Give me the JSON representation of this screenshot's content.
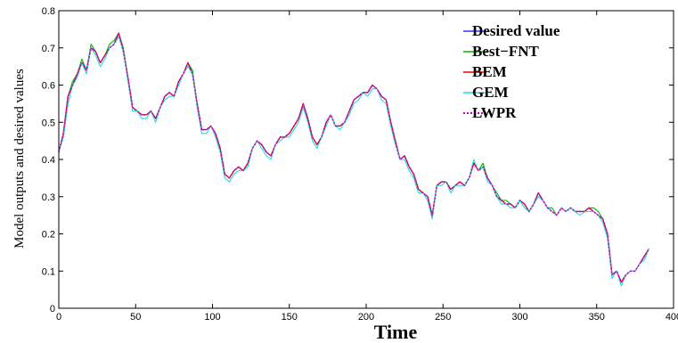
{
  "chart_data": {
    "type": "line",
    "xlabel": "Time",
    "ylabel": "Model outputs and desired values",
    "xlim": [
      0,
      400
    ],
    "ylim": [
      0,
      0.8
    ],
    "xticks": [
      "0",
      "50",
      "100",
      "150",
      "200",
      "250",
      "300",
      "350",
      "400"
    ],
    "yticks": [
      "0",
      "0.1",
      "0.2",
      "0.3",
      "0.4",
      "0.5",
      "0.6",
      "0.7",
      "0.8"
    ],
    "legend_position": "top-right",
    "grid": false,
    "x": [
      0,
      3,
      6,
      9,
      12,
      15,
      18,
      21,
      24,
      27,
      30,
      33,
      36,
      39,
      42,
      45,
      48,
      51,
      54,
      57,
      60,
      63,
      66,
      69,
      72,
      75,
      78,
      81,
      84,
      87,
      90,
      93,
      96,
      99,
      102,
      105,
      108,
      111,
      114,
      117,
      120,
      123,
      126,
      129,
      132,
      135,
      138,
      141,
      144,
      147,
      150,
      153,
      156,
      159,
      162,
      165,
      168,
      171,
      174,
      177,
      180,
      183,
      186,
      189,
      192,
      195,
      198,
      201,
      204,
      207,
      210,
      213,
      216,
      219,
      222,
      225,
      228,
      231,
      234,
      237,
      240,
      243,
      246,
      249,
      252,
      255,
      258,
      261,
      264,
      267,
      270,
      273,
      276,
      279,
      282,
      285,
      288,
      291,
      294,
      297,
      300,
      303,
      306,
      309,
      312,
      315,
      318,
      321,
      324,
      327,
      330,
      333,
      336,
      339,
      342,
      345,
      348,
      351,
      354,
      357,
      360,
      363,
      366,
      369,
      372,
      375,
      378,
      381,
      384
    ],
    "series": [
      {
        "name": "Desired value",
        "color": "#3333ff",
        "style": "solid",
        "values": [
          0.42,
          0.47,
          0.57,
          0.6,
          0.63,
          0.66,
          0.64,
          0.7,
          0.69,
          0.66,
          0.68,
          0.7,
          0.71,
          0.74,
          0.69,
          0.62,
          0.54,
          0.53,
          0.52,
          0.52,
          0.53,
          0.51,
          0.54,
          0.57,
          0.58,
          0.57,
          0.61,
          0.63,
          0.66,
          0.63,
          0.55,
          0.48,
          0.48,
          0.49,
          0.47,
          0.43,
          0.36,
          0.35,
          0.37,
          0.38,
          0.37,
          0.39,
          0.43,
          0.45,
          0.44,
          0.42,
          0.41,
          0.44,
          0.46,
          0.46,
          0.47,
          0.49,
          0.51,
          0.55,
          0.51,
          0.46,
          0.44,
          0.46,
          0.5,
          0.52,
          0.49,
          0.49,
          0.5,
          0.53,
          0.56,
          0.57,
          0.58,
          0.58,
          0.6,
          0.59,
          0.57,
          0.56,
          0.5,
          0.45,
          0.4,
          0.41,
          0.38,
          0.36,
          0.32,
          0.31,
          0.3,
          0.25,
          0.33,
          0.34,
          0.34,
          0.32,
          0.33,
          0.34,
          0.33,
          0.35,
          0.39,
          0.37,
          0.38,
          0.35,
          0.33,
          0.3,
          0.29,
          0.28,
          0.28,
          0.27,
          0.29,
          0.28,
          0.26,
          0.28,
          0.31,
          0.29,
          0.27,
          0.26,
          0.25,
          0.27,
          0.26,
          0.27,
          0.26,
          0.26,
          0.26,
          0.27,
          0.26,
          0.25,
          0.24,
          0.2,
          0.09,
          0.1,
          0.07,
          0.09,
          0.1,
          0.1,
          0.12,
          0.14,
          0.16
        ]
      },
      {
        "name": "Best−FNT",
        "color": "#00bb00",
        "style": "solid",
        "values": [
          0.42,
          0.47,
          0.57,
          0.61,
          0.63,
          0.67,
          0.64,
          0.71,
          0.69,
          0.66,
          0.68,
          0.71,
          0.72,
          0.74,
          0.7,
          0.62,
          0.54,
          0.53,
          0.52,
          0.52,
          0.53,
          0.51,
          0.54,
          0.57,
          0.58,
          0.57,
          0.61,
          0.63,
          0.66,
          0.64,
          0.55,
          0.48,
          0.48,
          0.49,
          0.47,
          0.43,
          0.36,
          0.35,
          0.37,
          0.38,
          0.37,
          0.39,
          0.43,
          0.45,
          0.44,
          0.42,
          0.41,
          0.44,
          0.46,
          0.46,
          0.47,
          0.49,
          0.51,
          0.55,
          0.51,
          0.46,
          0.44,
          0.46,
          0.5,
          0.52,
          0.49,
          0.49,
          0.5,
          0.53,
          0.56,
          0.57,
          0.58,
          0.58,
          0.6,
          0.59,
          0.57,
          0.56,
          0.5,
          0.45,
          0.4,
          0.41,
          0.38,
          0.36,
          0.32,
          0.31,
          0.3,
          0.25,
          0.33,
          0.34,
          0.34,
          0.32,
          0.33,
          0.34,
          0.33,
          0.35,
          0.39,
          0.37,
          0.39,
          0.35,
          0.33,
          0.31,
          0.29,
          0.29,
          0.28,
          0.27,
          0.29,
          0.28,
          0.26,
          0.28,
          0.31,
          0.29,
          0.27,
          0.27,
          0.25,
          0.27,
          0.26,
          0.27,
          0.26,
          0.26,
          0.26,
          0.27,
          0.27,
          0.26,
          0.24,
          0.2,
          0.09,
          0.1,
          0.07,
          0.09,
          0.1,
          0.1,
          0.12,
          0.14,
          0.16
        ]
      },
      {
        "name": "BEM",
        "color": "#ee0000",
        "style": "solid",
        "values": [
          0.42,
          0.47,
          0.57,
          0.6,
          0.63,
          0.66,
          0.64,
          0.7,
          0.69,
          0.66,
          0.68,
          0.7,
          0.71,
          0.74,
          0.69,
          0.62,
          0.54,
          0.53,
          0.52,
          0.52,
          0.53,
          0.51,
          0.54,
          0.57,
          0.58,
          0.57,
          0.61,
          0.63,
          0.66,
          0.63,
          0.55,
          0.48,
          0.48,
          0.49,
          0.47,
          0.43,
          0.36,
          0.35,
          0.37,
          0.38,
          0.37,
          0.39,
          0.43,
          0.45,
          0.44,
          0.42,
          0.41,
          0.44,
          0.46,
          0.46,
          0.47,
          0.49,
          0.51,
          0.55,
          0.51,
          0.46,
          0.44,
          0.46,
          0.5,
          0.52,
          0.49,
          0.49,
          0.5,
          0.53,
          0.56,
          0.57,
          0.58,
          0.58,
          0.6,
          0.59,
          0.57,
          0.56,
          0.5,
          0.45,
          0.4,
          0.41,
          0.38,
          0.36,
          0.32,
          0.31,
          0.3,
          0.25,
          0.33,
          0.34,
          0.34,
          0.32,
          0.33,
          0.34,
          0.33,
          0.35,
          0.39,
          0.37,
          0.38,
          0.35,
          0.33,
          0.3,
          0.29,
          0.28,
          0.28,
          0.27,
          0.29,
          0.28,
          0.26,
          0.28,
          0.31,
          0.29,
          0.27,
          0.26,
          0.25,
          0.27,
          0.26,
          0.27,
          0.26,
          0.26,
          0.26,
          0.27,
          0.26,
          0.25,
          0.24,
          0.2,
          0.09,
          0.1,
          0.07,
          0.09,
          0.1,
          0.1,
          0.12,
          0.14,
          0.16
        ]
      },
      {
        "name": "GEM",
        "color": "#22dddd",
        "style": "solid",
        "values": [
          0.42,
          0.46,
          0.55,
          0.6,
          0.62,
          0.66,
          0.63,
          0.7,
          0.68,
          0.65,
          0.67,
          0.7,
          0.71,
          0.73,
          0.69,
          0.61,
          0.53,
          0.53,
          0.51,
          0.51,
          0.53,
          0.5,
          0.54,
          0.56,
          0.57,
          0.57,
          0.6,
          0.63,
          0.65,
          0.63,
          0.54,
          0.47,
          0.47,
          0.49,
          0.46,
          0.42,
          0.35,
          0.34,
          0.36,
          0.37,
          0.37,
          0.38,
          0.43,
          0.45,
          0.43,
          0.41,
          0.4,
          0.44,
          0.45,
          0.46,
          0.46,
          0.48,
          0.5,
          0.54,
          0.5,
          0.45,
          0.43,
          0.46,
          0.49,
          0.52,
          0.49,
          0.48,
          0.5,
          0.52,
          0.55,
          0.56,
          0.58,
          0.57,
          0.59,
          0.59,
          0.56,
          0.55,
          0.49,
          0.44,
          0.4,
          0.4,
          0.37,
          0.35,
          0.31,
          0.31,
          0.29,
          0.24,
          0.33,
          0.33,
          0.34,
          0.31,
          0.33,
          0.33,
          0.33,
          0.35,
          0.4,
          0.37,
          0.38,
          0.34,
          0.33,
          0.3,
          0.28,
          0.28,
          0.27,
          0.27,
          0.29,
          0.27,
          0.26,
          0.28,
          0.3,
          0.29,
          0.27,
          0.26,
          0.25,
          0.27,
          0.26,
          0.27,
          0.26,
          0.25,
          0.26,
          0.26,
          0.26,
          0.25,
          0.23,
          0.19,
          0.08,
          0.1,
          0.06,
          0.09,
          0.1,
          0.1,
          0.12,
          0.13,
          0.16
        ]
      },
      {
        "name": "LWPR",
        "color": "#cc00cc",
        "style": "dotted",
        "values": [
          0.42,
          0.47,
          0.57,
          0.6,
          0.63,
          0.66,
          0.64,
          0.7,
          0.69,
          0.66,
          0.68,
          0.7,
          0.71,
          0.74,
          0.69,
          0.62,
          0.54,
          0.53,
          0.52,
          0.52,
          0.53,
          0.51,
          0.54,
          0.57,
          0.58,
          0.57,
          0.61,
          0.63,
          0.66,
          0.63,
          0.55,
          0.48,
          0.48,
          0.49,
          0.47,
          0.43,
          0.36,
          0.35,
          0.37,
          0.38,
          0.37,
          0.39,
          0.43,
          0.45,
          0.44,
          0.42,
          0.41,
          0.44,
          0.46,
          0.46,
          0.47,
          0.49,
          0.51,
          0.55,
          0.51,
          0.46,
          0.44,
          0.46,
          0.5,
          0.52,
          0.49,
          0.49,
          0.5,
          0.53,
          0.56,
          0.57,
          0.58,
          0.58,
          0.6,
          0.59,
          0.57,
          0.56,
          0.5,
          0.45,
          0.4,
          0.41,
          0.38,
          0.36,
          0.32,
          0.31,
          0.3,
          0.25,
          0.33,
          0.34,
          0.34,
          0.32,
          0.33,
          0.34,
          0.33,
          0.35,
          0.39,
          0.37,
          0.38,
          0.35,
          0.33,
          0.3,
          0.29,
          0.28,
          0.28,
          0.27,
          0.29,
          0.28,
          0.26,
          0.28,
          0.31,
          0.29,
          0.27,
          0.26,
          0.25,
          0.27,
          0.26,
          0.27,
          0.26,
          0.26,
          0.26,
          0.27,
          0.26,
          0.25,
          0.24,
          0.2,
          0.09,
          0.1,
          0.07,
          0.09,
          0.1,
          0.1,
          0.12,
          0.14,
          0.16
        ]
      }
    ]
  }
}
